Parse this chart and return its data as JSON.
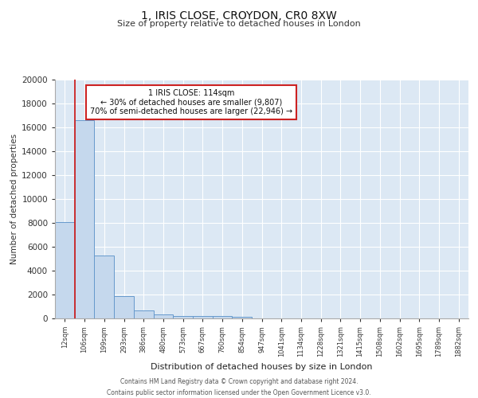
{
  "title1": "1, IRIS CLOSE, CROYDON, CR0 8XW",
  "title2": "Size of property relative to detached houses in London",
  "xlabel": "Distribution of detached houses by size in London",
  "ylabel": "Number of detached properties",
  "categories": [
    "12sqm",
    "106sqm",
    "199sqm",
    "293sqm",
    "386sqm",
    "480sqm",
    "573sqm",
    "667sqm",
    "760sqm",
    "854sqm",
    "947sqm",
    "1041sqm",
    "1134sqm",
    "1228sqm",
    "1321sqm",
    "1415sqm",
    "1508sqm",
    "1602sqm",
    "1695sqm",
    "1789sqm",
    "1882sqm"
  ],
  "values": [
    8050,
    16600,
    5300,
    1850,
    700,
    320,
    230,
    190,
    170,
    150,
    0,
    0,
    0,
    0,
    0,
    0,
    0,
    0,
    0,
    0,
    0
  ],
  "bar_color": "#c5d8ed",
  "bar_edge_color": "#6699cc",
  "vline_color": "#cc2222",
  "annotation_title": "1 IRIS CLOSE: 114sqm",
  "annotation_line1": "← 30% of detached houses are smaller (9,807)",
  "annotation_line2": "70% of semi-detached houses are larger (22,946) →",
  "annotation_box_color": "#ffffff",
  "annotation_box_edge": "#cc2222",
  "footer1": "Contains HM Land Registry data © Crown copyright and database right 2024.",
  "footer2": "Contains public sector information licensed under the Open Government Licence v3.0.",
  "bg_color": "#dce8f4",
  "ylim": [
    0,
    20000
  ],
  "yticks": [
    0,
    2000,
    4000,
    6000,
    8000,
    10000,
    12000,
    14000,
    16000,
    18000,
    20000
  ]
}
